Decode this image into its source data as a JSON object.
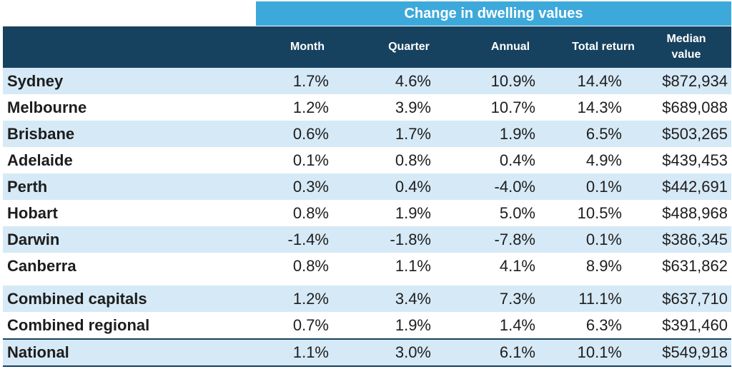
{
  "banner": "Change in dwelling values",
  "columns": [
    "Month",
    "Quarter",
    "Annual",
    "Total return",
    "Median value"
  ],
  "rows": [
    {
      "name": "Sydney",
      "month": "1.7%",
      "quarter": "4.6%",
      "annual": "10.9%",
      "total": "14.4%",
      "median": "$872,934"
    },
    {
      "name": "Melbourne",
      "month": "1.2%",
      "quarter": "3.9%",
      "annual": "10.7%",
      "total": "14.3%",
      "median": "$689,088"
    },
    {
      "name": "Brisbane",
      "month": "0.6%",
      "quarter": "1.7%",
      "annual": "1.9%",
      "total": "6.5%",
      "median": "$503,265"
    },
    {
      "name": "Adelaide",
      "month": "0.1%",
      "quarter": "0.8%",
      "annual": "0.4%",
      "total": "4.9%",
      "median": "$439,453"
    },
    {
      "name": "Perth",
      "month": "0.3%",
      "quarter": "0.4%",
      "annual": "-4.0%",
      "total": "0.1%",
      "median": "$442,691"
    },
    {
      "name": "Hobart",
      "month": "0.8%",
      "quarter": "1.9%",
      "annual": "5.0%",
      "total": "10.5%",
      "median": "$488,968"
    },
    {
      "name": "Darwin",
      "month": "-1.4%",
      "quarter": "-1.8%",
      "annual": "-7.8%",
      "total": "0.1%",
      "median": "$386,345"
    },
    {
      "name": "Canberra",
      "month": "0.8%",
      "quarter": "1.1%",
      "annual": "4.1%",
      "total": "8.9%",
      "median": "$631,862"
    },
    {
      "name": "Combined capitals",
      "month": "1.2%",
      "quarter": "3.4%",
      "annual": "7.3%",
      "total": "11.1%",
      "median": "$637,710"
    },
    {
      "name": "Combined regional",
      "month": "0.7%",
      "quarter": "1.9%",
      "annual": "1.4%",
      "total": "6.3%",
      "median": "$391,460"
    },
    {
      "name": "National",
      "month": "1.1%",
      "quarter": "3.0%",
      "annual": "6.1%",
      "total": "10.1%",
      "median": "$549,918"
    }
  ],
  "colors": {
    "banner": "#3da9db",
    "header": "#16425f",
    "shaded_row": "#d6e9f6"
  }
}
